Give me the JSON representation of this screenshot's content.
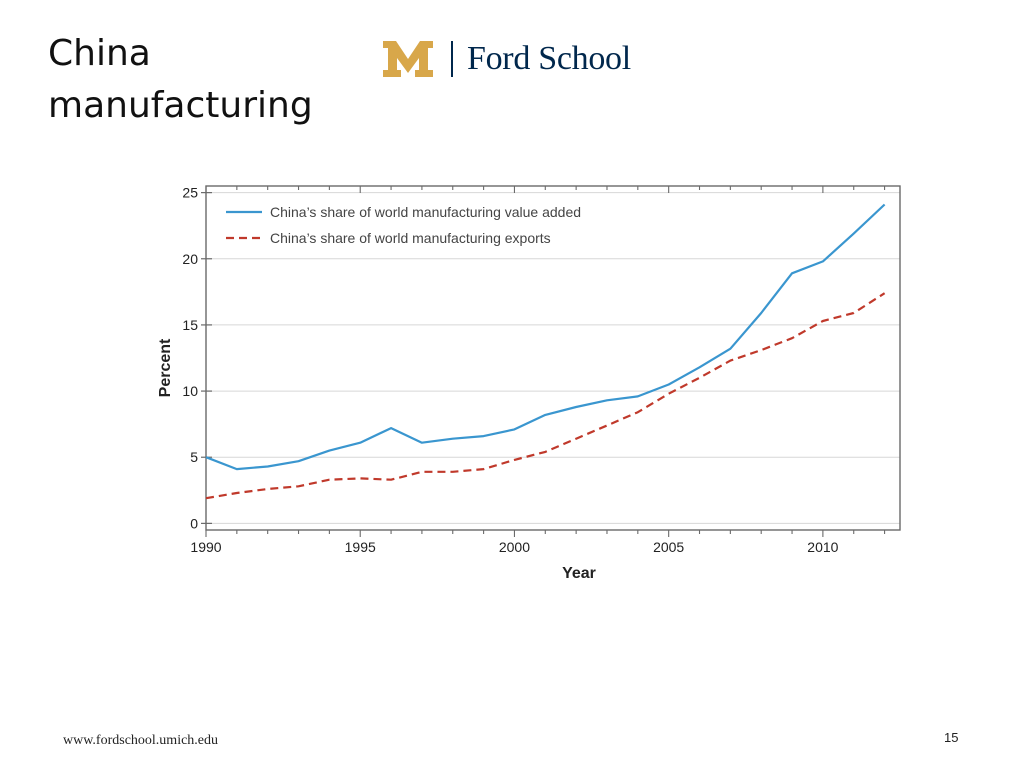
{
  "slide": {
    "title_line1": "China",
    "title_line2": "manufacturing",
    "footer_url": "www.fordschool.umich.edu",
    "page_number": "15"
  },
  "logo": {
    "wordmark": "Ford School",
    "emblem": "block-m-icon",
    "emblem_color": "#d8a74a",
    "text_color": "#00274c"
  },
  "chart_data": {
    "type": "line",
    "title": "",
    "xlabel": "Year",
    "ylabel": "Percent",
    "x": [
      1990,
      1991,
      1992,
      1993,
      1994,
      1995,
      1996,
      1997,
      1998,
      1999,
      2000,
      2001,
      2002,
      2003,
      2004,
      2005,
      2006,
      2007,
      2008,
      2009,
      2010,
      2011,
      2012
    ],
    "xlim": [
      1990,
      2012.5
    ],
    "ylim": [
      -0.5,
      25.5
    ],
    "xticks": [
      1990,
      1995,
      2000,
      2005,
      2010
    ],
    "yticks": [
      0,
      5,
      10,
      15,
      20,
      25
    ],
    "grid": true,
    "legend_position": "top-left",
    "series": [
      {
        "name": "China’s share of world manufacturing value added",
        "color": "#3a96cf",
        "style": "solid",
        "values": [
          5.0,
          4.1,
          4.3,
          4.7,
          5.5,
          6.1,
          7.2,
          6.1,
          6.4,
          6.6,
          7.1,
          8.2,
          8.8,
          9.3,
          9.6,
          10.5,
          11.8,
          13.2,
          15.9,
          18.9,
          19.8,
          21.9,
          24.1
        ]
      },
      {
        "name": "China’s share of world manufacturing exports",
        "color": "#c0392b",
        "style": "dashed",
        "values": [
          1.9,
          2.3,
          2.6,
          2.8,
          3.3,
          3.4,
          3.3,
          3.9,
          3.9,
          4.1,
          4.8,
          5.4,
          6.4,
          7.4,
          8.4,
          9.8,
          11.0,
          12.3,
          13.1,
          14.0,
          15.3,
          15.9,
          17.4
        ]
      }
    ]
  }
}
